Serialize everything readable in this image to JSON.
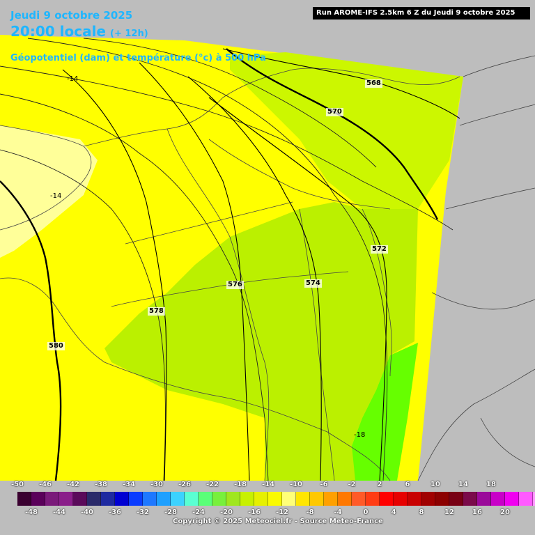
{
  "header": {
    "date": "Jeudi 9 octobre 2025",
    "time": "20:00 locale",
    "lead": "(+ 12h)",
    "field": "Géopotentiel (dam) et température (°c) à 500 hPa",
    "run": "Run AROME-IFS 2.5km 6 Z du Jeudi 9 octobre 2025"
  },
  "contour_labels": {
    "c568": "568",
    "c570": "570",
    "c572": "572",
    "c574": "574",
    "c576": "576",
    "c578": "578",
    "c580": "580"
  },
  "temp_labels": {
    "t1": "-14",
    "t2": "-14",
    "t3": "-18"
  },
  "legend": {
    "top_labels": [
      "-50",
      "-46",
      "-42",
      "-38",
      "-34",
      "-30",
      "-26",
      "-22",
      "-18",
      "-14",
      "-10",
      "-6",
      "-2",
      "2",
      "6",
      "10",
      "14",
      "18"
    ],
    "bottom_labels": [
      "-48",
      "-44",
      "-40",
      "-36",
      "-32",
      "-28",
      "-24",
      "-20",
      "-16",
      "-12",
      "-8",
      "-4",
      "0",
      "4",
      "8",
      "12",
      "16",
      "20"
    ],
    "colors": [
      "#3a0030",
      "#5a005a",
      "#7a1a7a",
      "#8a1e8a",
      "#5a0a5a",
      "#2a2a6a",
      "#1e2aa0",
      "#0000d2",
      "#0a3cff",
      "#1e78ff",
      "#1ea0ff",
      "#3cd2ff",
      "#5affd2",
      "#5aff78",
      "#78f03c",
      "#a0e61e",
      "#c8f000",
      "#e6f000",
      "#fafa00",
      "#ffff78",
      "#ffe600",
      "#ffc800",
      "#ffa000",
      "#ff7800",
      "#ff5a28",
      "#ff3c14",
      "#ff0000",
      "#e60000",
      "#c80000",
      "#a00000",
      "#8c0000",
      "#780014",
      "#7a0a4a",
      "#9a0a9a",
      "#c800c8",
      "#f000f0",
      "#ff5aff",
      "#ff96ff"
    ]
  },
  "copyright": "Copyright © 2025 Meteociel.fr - Source Meteo-France"
}
